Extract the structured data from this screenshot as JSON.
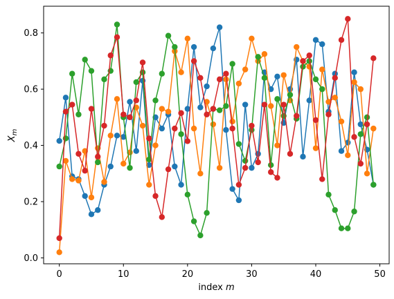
{
  "chart_data": {
    "type": "line",
    "xlabel": "index m",
    "ylabel": "X_m",
    "xlim": [
      -2.45,
      51.45
    ],
    "ylim": [
      -0.021,
      0.895
    ],
    "xticks": [
      0,
      10,
      20,
      30,
      40,
      50
    ],
    "yticks": [
      0.0,
      0.2,
      0.4,
      0.6,
      0.8
    ],
    "x": [
      0,
      1,
      2,
      3,
      4,
      5,
      6,
      7,
      8,
      9,
      10,
      11,
      12,
      13,
      14,
      15,
      16,
      17,
      18,
      19,
      20,
      21,
      22,
      23,
      24,
      25,
      26,
      27,
      28,
      29,
      30,
      31,
      32,
      33,
      34,
      35,
      36,
      37,
      38,
      39,
      40,
      41,
      42,
      43,
      44,
      45,
      46,
      47,
      48,
      49
    ],
    "series": [
      {
        "color": "#1f77b4",
        "values": [
          0.416,
          0.57,
          0.29,
          0.28,
          0.22,
          0.155,
          0.17,
          0.26,
          0.325,
          0.435,
          0.43,
          0.555,
          0.38,
          0.63,
          0.33,
          0.5,
          0.46,
          0.51,
          0.325,
          0.26,
          0.53,
          0.75,
          0.535,
          0.61,
          0.745,
          0.82,
          0.455,
          0.245,
          0.205,
          0.545,
          0.32,
          0.37,
          0.66,
          0.6,
          0.645,
          0.48,
          0.6,
          0.705,
          0.36,
          0.56,
          0.775,
          0.76,
          0.52,
          0.655,
          0.38,
          0.41,
          0.66,
          0.475,
          0.385,
          0.26
        ]
      },
      {
        "color": "#ff7f0e",
        "values": [
          0.02,
          0.345,
          0.28,
          0.275,
          0.38,
          0.215,
          0.39,
          0.27,
          0.435,
          0.565,
          0.335,
          0.375,
          0.535,
          0.47,
          0.26,
          0.4,
          0.53,
          0.52,
          0.735,
          0.66,
          0.78,
          0.46,
          0.3,
          0.555,
          0.475,
          0.32,
          0.635,
          0.485,
          0.62,
          0.67,
          0.78,
          0.7,
          0.725,
          0.54,
          0.4,
          0.65,
          0.56,
          0.75,
          0.7,
          0.68,
          0.39,
          0.67,
          0.555,
          0.57,
          0.485,
          0.365,
          0.625,
          0.6,
          0.3,
          0.46
        ]
      },
      {
        "color": "#2ca02c",
        "values": [
          0.325,
          0.425,
          0.655,
          0.51,
          0.705,
          0.665,
          0.34,
          0.635,
          0.665,
          0.83,
          0.5,
          0.32,
          0.625,
          0.66,
          0.35,
          0.56,
          0.655,
          0.79,
          0.75,
          0.44,
          0.225,
          0.13,
          0.08,
          0.16,
          0.53,
          0.525,
          0.54,
          0.69,
          0.405,
          0.345,
          0.455,
          0.715,
          0.64,
          0.33,
          0.565,
          0.505,
          0.58,
          0.495,
          0.68,
          0.7,
          0.635,
          0.6,
          0.225,
          0.17,
          0.105,
          0.105,
          0.165,
          0.44,
          0.5,
          0.26
        ]
      },
      {
        "color": "#d62728",
        "values": [
          0.07,
          0.52,
          0.545,
          0.37,
          0.31,
          0.53,
          0.36,
          0.47,
          0.72,
          0.785,
          0.51,
          0.5,
          0.56,
          0.695,
          0.425,
          0.22,
          0.145,
          0.315,
          0.46,
          0.515,
          0.415,
          0.7,
          0.64,
          0.51,
          0.53,
          0.635,
          0.655,
          0.46,
          0.26,
          0.32,
          0.47,
          0.34,
          0.545,
          0.305,
          0.285,
          0.545,
          0.37,
          0.505,
          0.7,
          0.72,
          0.49,
          0.28,
          0.51,
          0.64,
          0.775,
          0.85,
          0.43,
          0.335,
          0.475,
          0.71
        ]
      }
    ]
  }
}
